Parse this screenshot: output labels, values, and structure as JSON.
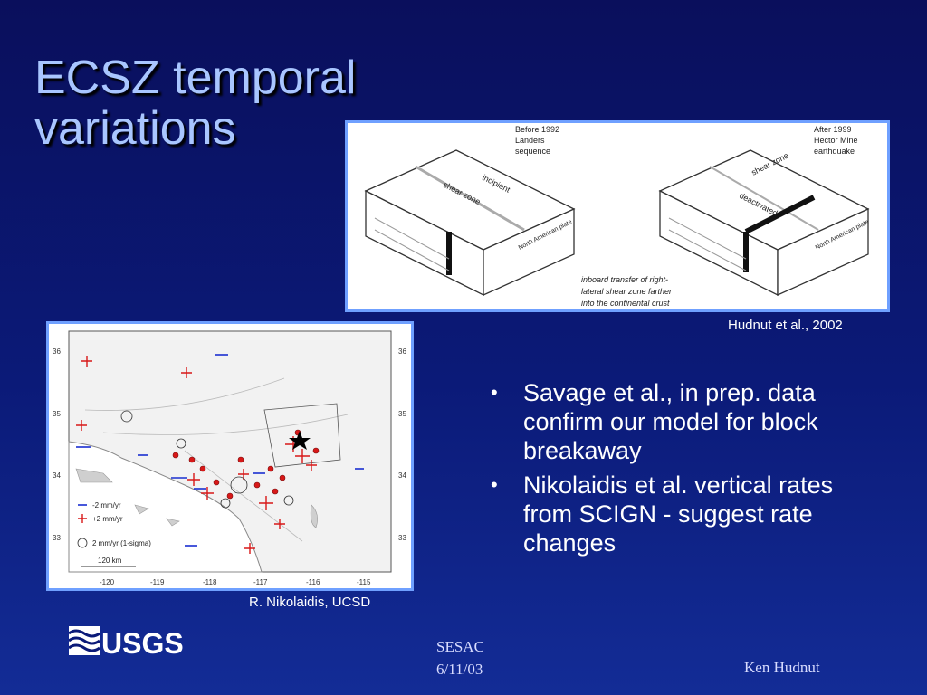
{
  "slide": {
    "title_line1": "ECSZ temporal",
    "title_line2": "variations"
  },
  "top_figure": {
    "left_header": [
      "Before 1992",
      "Landers",
      "sequence"
    ],
    "right_header": [
      "After 1999",
      "Hector Mine",
      "earthquake"
    ],
    "left_labels": [
      "incipient",
      "shear zone",
      "North American plate"
    ],
    "right_labels": [
      "shear zone",
      "deactivated",
      "North American plate"
    ],
    "note": [
      "inboard transfer of right-",
      "lateral shear zone farther",
      "into the continental crust"
    ],
    "credit": "Hudnut et al., 2002"
  },
  "map_figure": {
    "lat_labels": [
      "36",
      "35",
      "34",
      "33"
    ],
    "lon_labels": [
      "-120",
      "-119",
      "-118",
      "-117",
      "-116",
      "-115"
    ],
    "legend": [
      "-2  mm/yr",
      "+2  mm/yr",
      "2  mm/yr  (1-sigma)"
    ],
    "scale": "120 km",
    "credit": "R. Nikolaidis, UCSD",
    "colors": {
      "negative": "#1a2fd0",
      "positive": "#d81818"
    }
  },
  "bullets": [
    "Savage et al., in prep. data confirm our model for block breakaway",
    "Nikolaidis et al. vertical rates from SCIGN - suggest rate changes"
  ],
  "bullet_symbol": "•",
  "footer": {
    "logo_text": "USGS",
    "event": "SESAC",
    "date": "6/11/03",
    "author": "Ken Hudnut"
  }
}
